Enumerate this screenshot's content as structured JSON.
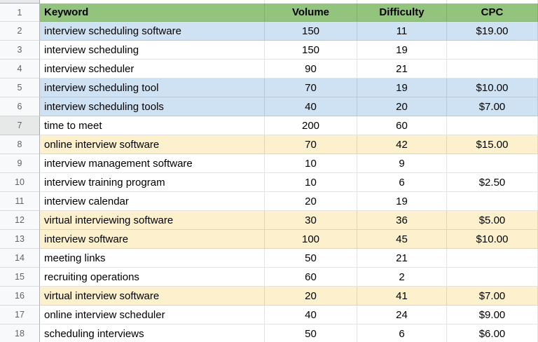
{
  "app": "spreadsheet-keyword-research",
  "colors": {
    "header_bg": "#93c47d",
    "blue_fill": "#cfe2f3",
    "yellow_fill": "#fdf0cd",
    "row_header_bg": "#f8f9fa",
    "row_header_active_bg": "#e7e8e8",
    "row_number_text": "#5f6368",
    "corner_bg": "#e8eaed",
    "gridline": "rgba(0,0,0,0.11)"
  },
  "header": {
    "row_num": "1",
    "columns": [
      "Keyword",
      "Volume",
      "Difficulty",
      "CPC"
    ]
  },
  "rows": [
    {
      "num": "2",
      "keyword": "interview scheduling software",
      "volume": "150",
      "difficulty": "11",
      "cpc": "$19.00",
      "fill": "blue"
    },
    {
      "num": "3",
      "keyword": "interview scheduling",
      "volume": "150",
      "difficulty": "19",
      "cpc": "",
      "fill": "none"
    },
    {
      "num": "4",
      "keyword": "interview scheduler",
      "volume": "90",
      "difficulty": "21",
      "cpc": "",
      "fill": "none"
    },
    {
      "num": "5",
      "keyword": "interview scheduling tool",
      "volume": "70",
      "difficulty": "19",
      "cpc": "$10.00",
      "fill": "blue"
    },
    {
      "num": "6",
      "keyword": "interview scheduling tools",
      "volume": "40",
      "difficulty": "20",
      "cpc": "$7.00",
      "fill": "blue"
    },
    {
      "num": "7",
      "keyword": "time to meet",
      "volume": "200",
      "difficulty": "60",
      "cpc": "",
      "fill": "none",
      "header_shade": true
    },
    {
      "num": "8",
      "keyword": "online interview software",
      "volume": "70",
      "difficulty": "42",
      "cpc": "$15.00",
      "fill": "yellow"
    },
    {
      "num": "9",
      "keyword": "interview management software",
      "volume": "10",
      "difficulty": "9",
      "cpc": "",
      "fill": "none"
    },
    {
      "num": "10",
      "keyword": "interview training program",
      "volume": "10",
      "difficulty": "6",
      "cpc": "$2.50",
      "fill": "none"
    },
    {
      "num": "11",
      "keyword": "interview calendar",
      "volume": "20",
      "difficulty": "19",
      "cpc": "",
      "fill": "none"
    },
    {
      "num": "12",
      "keyword": "virtual interviewing software",
      "volume": "30",
      "difficulty": "36",
      "cpc": "$5.00",
      "fill": "yellow"
    },
    {
      "num": "13",
      "keyword": "interview software",
      "volume": "100",
      "difficulty": "45",
      "cpc": "$10.00",
      "fill": "yellow"
    },
    {
      "num": "14",
      "keyword": "meeting links",
      "volume": "50",
      "difficulty": "21",
      "cpc": "",
      "fill": "none"
    },
    {
      "num": "15",
      "keyword": "recruiting operations",
      "volume": "60",
      "difficulty": "2",
      "cpc": "",
      "fill": "none"
    },
    {
      "num": "16",
      "keyword": "virtual interview software",
      "volume": "20",
      "difficulty": "41",
      "cpc": "$7.00",
      "fill": "yellow"
    },
    {
      "num": "17",
      "keyword": "online interview scheduler",
      "volume": "40",
      "difficulty": "24",
      "cpc": "$9.00",
      "fill": "none"
    },
    {
      "num": "18",
      "keyword": "scheduling interviews",
      "volume": "50",
      "difficulty": "6",
      "cpc": "$6.00",
      "fill": "none"
    }
  ]
}
